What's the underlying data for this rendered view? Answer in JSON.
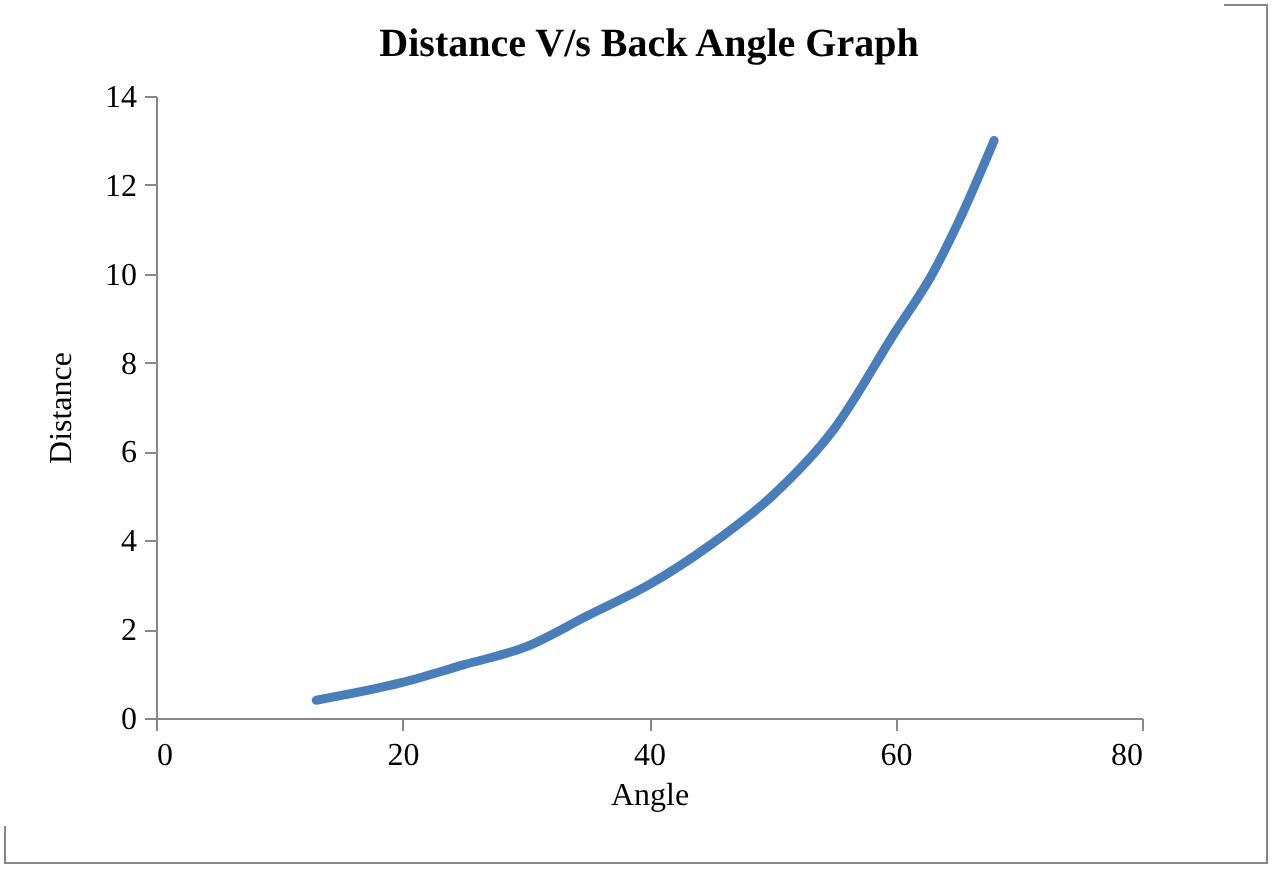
{
  "chart_data": {
    "type": "line",
    "title": "Distance V/s Back Angle Graph",
    "xlabel": "Angle",
    "ylabel": "Distance",
    "x": [
      13,
      20,
      25,
      30,
      35,
      40,
      45,
      50,
      55,
      60,
      63,
      65,
      68
    ],
    "series": [
      {
        "color": "#4a7ebb",
        "values": [
          0.4,
          0.8,
          1.2,
          1.6,
          2.3,
          3.0,
          3.9,
          5.0,
          6.5,
          8.7,
          10.0,
          11.1,
          13.0
        ]
      }
    ],
    "xlim": [
      0,
      80
    ],
    "xticks": [
      0,
      20,
      40,
      60,
      80
    ],
    "ylim": [
      0,
      14
    ],
    "yticks": [
      0,
      2,
      4,
      6,
      8,
      10,
      12,
      14
    ],
    "grid": false,
    "marker": "none",
    "line_style": "solid"
  }
}
